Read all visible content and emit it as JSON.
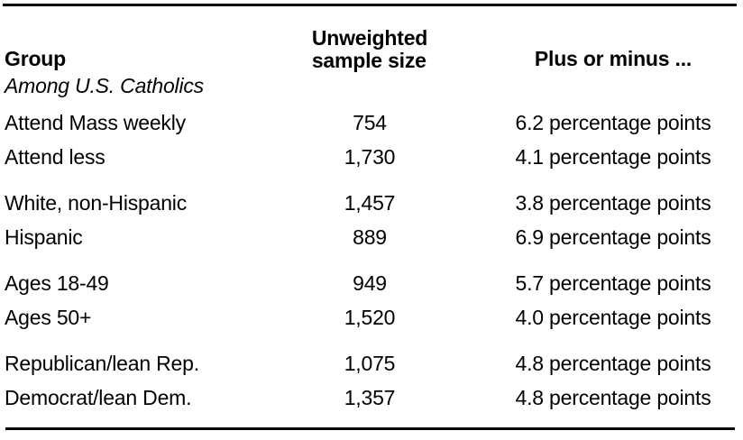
{
  "table": {
    "headers": {
      "group": "Group",
      "sample_line1": "Unweighted",
      "sample_line2": "sample size",
      "margin": "Plus or minus ..."
    },
    "subtitle": "Among U.S. Catholics",
    "rows": [
      {
        "group": "Attend Mass weekly",
        "sample_size": "754",
        "margin": "6.2 percentage points",
        "group_start": false
      },
      {
        "group": "Attend less",
        "sample_size": "1,730",
        "margin": "4.1 percentage points",
        "group_start": false
      },
      {
        "group": "White, non-Hispanic",
        "sample_size": "1,457",
        "margin": "3.8 percentage points",
        "group_start": true
      },
      {
        "group": "Hispanic",
        "sample_size": "889",
        "margin": "6.9 percentage points",
        "group_start": false
      },
      {
        "group": "Ages 18-49",
        "sample_size": "949",
        "margin": "5.7 percentage points",
        "group_start": true
      },
      {
        "group": "Ages 50+",
        "sample_size": "1,520",
        "margin": "4.0 percentage points",
        "group_start": false
      },
      {
        "group": "Republican/lean Rep.",
        "sample_size": "1,075",
        "margin": "4.8 percentage points",
        "group_start": true
      },
      {
        "group": "Democrat/lean Dem.",
        "sample_size": "1,357",
        "margin": "4.8 percentage points",
        "group_start": false
      }
    ],
    "colors": {
      "text": "#000000",
      "rule": "#000000",
      "background": "#ffffff"
    }
  },
  "chart_data": {
    "type": "table",
    "title": "",
    "columns": [
      "Group",
      "Unweighted sample size",
      "Plus or minus ..."
    ],
    "subtitle_row": "Among U.S. Catholics",
    "groups": [
      [
        "Attend Mass weekly",
        "Attend less"
      ],
      [
        "White, non-Hispanic",
        "Hispanic"
      ],
      [
        "Ages 18-49",
        "Ages 50+"
      ],
      [
        "Republican/lean Rep.",
        "Democrat/lean Dem."
      ]
    ],
    "rows": [
      [
        "Attend Mass weekly",
        754,
        "6.2 percentage points"
      ],
      [
        "Attend less",
        1730,
        "4.1 percentage points"
      ],
      [
        "White, non-Hispanic",
        1457,
        "3.8 percentage points"
      ],
      [
        "Hispanic",
        889,
        "6.9 percentage points"
      ],
      [
        "Ages 18-49",
        949,
        "5.7 percentage points"
      ],
      [
        "Ages 50+",
        1520,
        "4.0 percentage points"
      ],
      [
        "Republican/lean Rep.",
        1075,
        "4.8 percentage points"
      ],
      [
        "Democrat/lean Dem.",
        1357,
        "4.8 percentage points"
      ]
    ],
    "margins_of_error_pct_points": [
      6.2,
      4.1,
      3.8,
      6.9,
      5.7,
      4.0,
      4.8,
      4.8
    ],
    "layout": {
      "top_rule": true,
      "bottom_rule": true,
      "grid": false
    }
  }
}
